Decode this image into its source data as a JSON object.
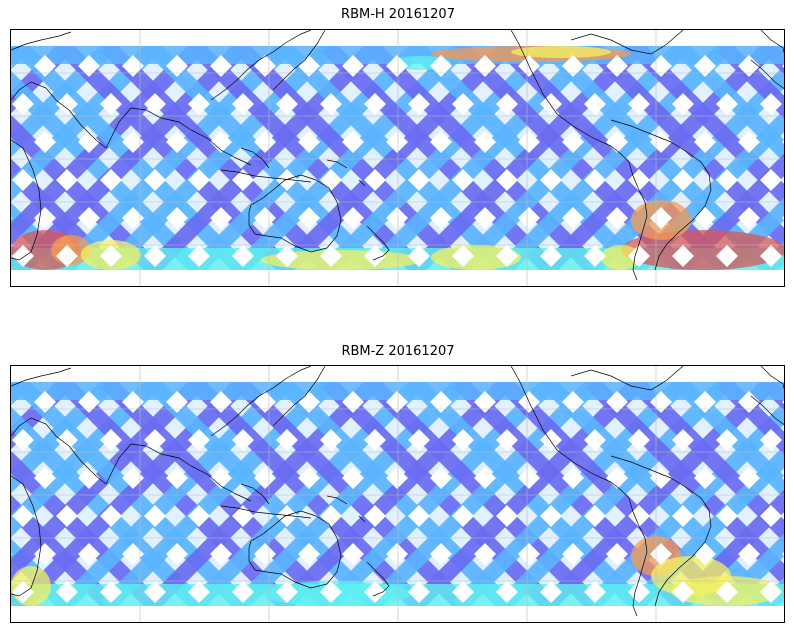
{
  "panels": [
    {
      "id": "rbm-h",
      "title": "RBM-H 20161207",
      "hot_regions": [
        "southern-ocean-west",
        "southern-ocean-east",
        "north-pacific-band"
      ],
      "colors": {
        "low": "#6a6cf2",
        "mid": "#5ab4ff",
        "cyan": "#5ff0f0",
        "yellow": "#f6f060",
        "orange": "#f79a50",
        "high": "#d95555"
      }
    },
    {
      "id": "rbm-z",
      "title": "RBM-Z 20161207",
      "hot_regions": [
        "south-america-east"
      ],
      "colors": {
        "low": "#6a6cf2",
        "mid": "#5ab4ff",
        "cyan": "#5ff0f0",
        "yellow": "#f6f060",
        "orange": "#f79a50",
        "high": "#d95555"
      }
    }
  ],
  "map": {
    "projection": "plate-carree",
    "gridlines": true,
    "coastlines": true,
    "colormap": "jet"
  }
}
